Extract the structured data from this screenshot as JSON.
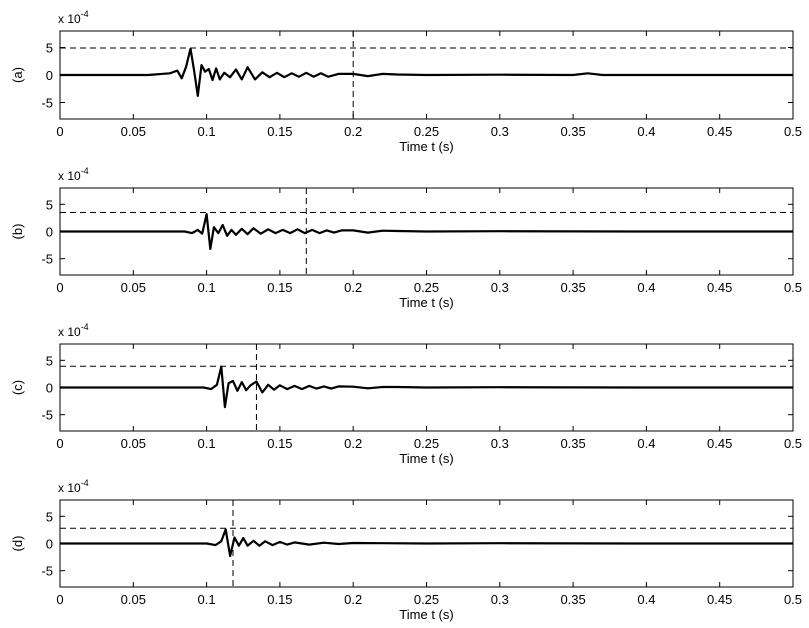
{
  "chart_data": [
    {
      "type": "line",
      "ylabel": "(a)",
      "xlabel": "Time t (s)",
      "y_exponent_label": "x 10",
      "y_exponent_power": "-4",
      "xlim": [
        0,
        0.5
      ],
      "ylim": [
        -8,
        8
      ],
      "x_ticks": [
        "0",
        "0.05",
        "0.1",
        "0.15",
        "0.2",
        "0.25",
        "0.3",
        "0.35",
        "0.4",
        "0.45",
        "0.5"
      ],
      "y_ticks": [
        "-5",
        "0",
        "5"
      ],
      "threshold": 4.9,
      "marker_time": 0.2,
      "series": [
        {
          "x": [
            0,
            0.06,
            0.075,
            0.08,
            0.083,
            0.086,
            0.089,
            0.0915,
            0.094,
            0.0965,
            0.099,
            0.1015,
            0.104,
            0.1065,
            0.109,
            0.112,
            0.116,
            0.12,
            0.124,
            0.128,
            0.133,
            0.138,
            0.143,
            0.148,
            0.153,
            0.158,
            0.163,
            0.168,
            0.173,
            0.178,
            0.183,
            0.19,
            0.2,
            0.21,
            0.22,
            0.23,
            0.25,
            0.3,
            0.35,
            0.36,
            0.37,
            0.4,
            0.45,
            0.5
          ],
          "values": [
            0,
            0,
            0.3,
            0.8,
            -0.6,
            1.5,
            4.8,
            0.8,
            -3.8,
            1.8,
            0.6,
            1.1,
            -0.9,
            1.2,
            -0.8,
            0.4,
            -0.4,
            1.0,
            -0.8,
            1.4,
            -0.8,
            0.5,
            -0.4,
            0.4,
            -0.4,
            0.3,
            -0.3,
            0.4,
            -0.3,
            0.3,
            -0.3,
            0.2,
            0.2,
            -0.2,
            0.2,
            0.1,
            0,
            0.05,
            0,
            0.3,
            0,
            0,
            0,
            0
          ]
        }
      ]
    },
    {
      "type": "line",
      "ylabel": "(b)",
      "xlabel": "Time t (s)",
      "y_exponent_label": "x 10",
      "y_exponent_power": "-4",
      "xlim": [
        0,
        0.5
      ],
      "ylim": [
        -8,
        8
      ],
      "x_ticks": [
        "0",
        "0.05",
        "0.1",
        "0.15",
        "0.2",
        "0.25",
        "0.3",
        "0.35",
        "0.4",
        "0.45",
        "0.5"
      ],
      "y_ticks": [
        "-5",
        "0",
        "5"
      ],
      "threshold": 3.5,
      "marker_time": 0.168,
      "series": [
        {
          "x": [
            0,
            0.085,
            0.09,
            0.094,
            0.097,
            0.1,
            0.1025,
            0.105,
            0.108,
            0.111,
            0.114,
            0.117,
            0.12,
            0.124,
            0.128,
            0.132,
            0.137,
            0.142,
            0.147,
            0.152,
            0.157,
            0.162,
            0.167,
            0.172,
            0.177,
            0.182,
            0.187,
            0.192,
            0.2,
            0.21,
            0.22,
            0.23,
            0.25,
            0.3,
            0.4,
            0.5
          ],
          "values": [
            0,
            0,
            -0.3,
            0.3,
            -0.4,
            3.2,
            -3.2,
            0.8,
            -0.3,
            1.2,
            -0.8,
            0.3,
            -0.6,
            0.5,
            -0.5,
            0.6,
            -0.4,
            0.4,
            -0.3,
            0.3,
            -0.3,
            0.4,
            -0.3,
            0.3,
            -0.3,
            0.2,
            -0.2,
            0.2,
            0.2,
            -0.2,
            0.15,
            0.1,
            0,
            0.05,
            0,
            0
          ]
        }
      ]
    },
    {
      "type": "line",
      "ylabel": "(c)",
      "xlabel": "Time t (s)",
      "y_exponent_label": "x 10",
      "y_exponent_power": "-4",
      "xlim": [
        0,
        0.5
      ],
      "ylim": [
        -8,
        8
      ],
      "x_ticks": [
        "0",
        "0.05",
        "0.1",
        "0.15",
        "0.2",
        "0.25",
        "0.3",
        "0.35",
        "0.4",
        "0.45",
        "0.5"
      ],
      "y_ticks": [
        "-5",
        "0",
        "5"
      ],
      "threshold": 3.9,
      "marker_time": 0.134,
      "series": [
        {
          "x": [
            0,
            0.098,
            0.103,
            0.107,
            0.11,
            0.1125,
            0.115,
            0.118,
            0.121,
            0.124,
            0.127,
            0.13,
            0.134,
            0.138,
            0.142,
            0.146,
            0.15,
            0.155,
            0.16,
            0.165,
            0.17,
            0.175,
            0.18,
            0.185,
            0.19,
            0.2,
            0.21,
            0.22,
            0.23,
            0.25,
            0.3,
            0.4,
            0.5
          ],
          "values": [
            0,
            0,
            -0.3,
            0.5,
            3.8,
            -3.6,
            0.8,
            1.2,
            -0.6,
            1.0,
            -0.5,
            0.4,
            1.1,
            -0.9,
            0.5,
            -0.4,
            0.4,
            -0.3,
            0.3,
            -0.3,
            0.3,
            -0.2,
            0.2,
            -0.2,
            0.2,
            0.15,
            -0.15,
            0.1,
            0.1,
            0,
            0.05,
            0,
            0
          ]
        }
      ]
    },
    {
      "type": "line",
      "ylabel": "(d)",
      "xlabel": "Time t (s)",
      "y_exponent_label": "x 10",
      "y_exponent_power": "-4",
      "xlim": [
        0,
        0.5
      ],
      "ylim": [
        -8,
        8
      ],
      "x_ticks": [
        "0",
        "0.05",
        "0.1",
        "0.15",
        "0.2",
        "0.25",
        "0.3",
        "0.35",
        "0.4",
        "0.45",
        "0.5"
      ],
      "y_ticks": [
        "-5",
        "0",
        "5"
      ],
      "threshold": 2.8,
      "marker_time": 0.118,
      "series": [
        {
          "x": [
            0,
            0.1,
            0.106,
            0.11,
            0.113,
            0.116,
            0.119,
            0.122,
            0.125,
            0.128,
            0.132,
            0.136,
            0.14,
            0.145,
            0.15,
            0.155,
            0.16,
            0.17,
            0.18,
            0.19,
            0.2,
            0.22,
            0.25,
            0.3,
            0.4,
            0.5
          ],
          "values": [
            0,
            0,
            -0.3,
            0.4,
            2.6,
            -2.3,
            1.1,
            -0.4,
            1.0,
            -0.4,
            0.5,
            -0.4,
            0.4,
            -0.3,
            0.3,
            -0.2,
            0.2,
            -0.2,
            0.15,
            -0.1,
            0.1,
            0.05,
            0,
            0.05,
            0,
            0
          ]
        }
      ]
    }
  ]
}
